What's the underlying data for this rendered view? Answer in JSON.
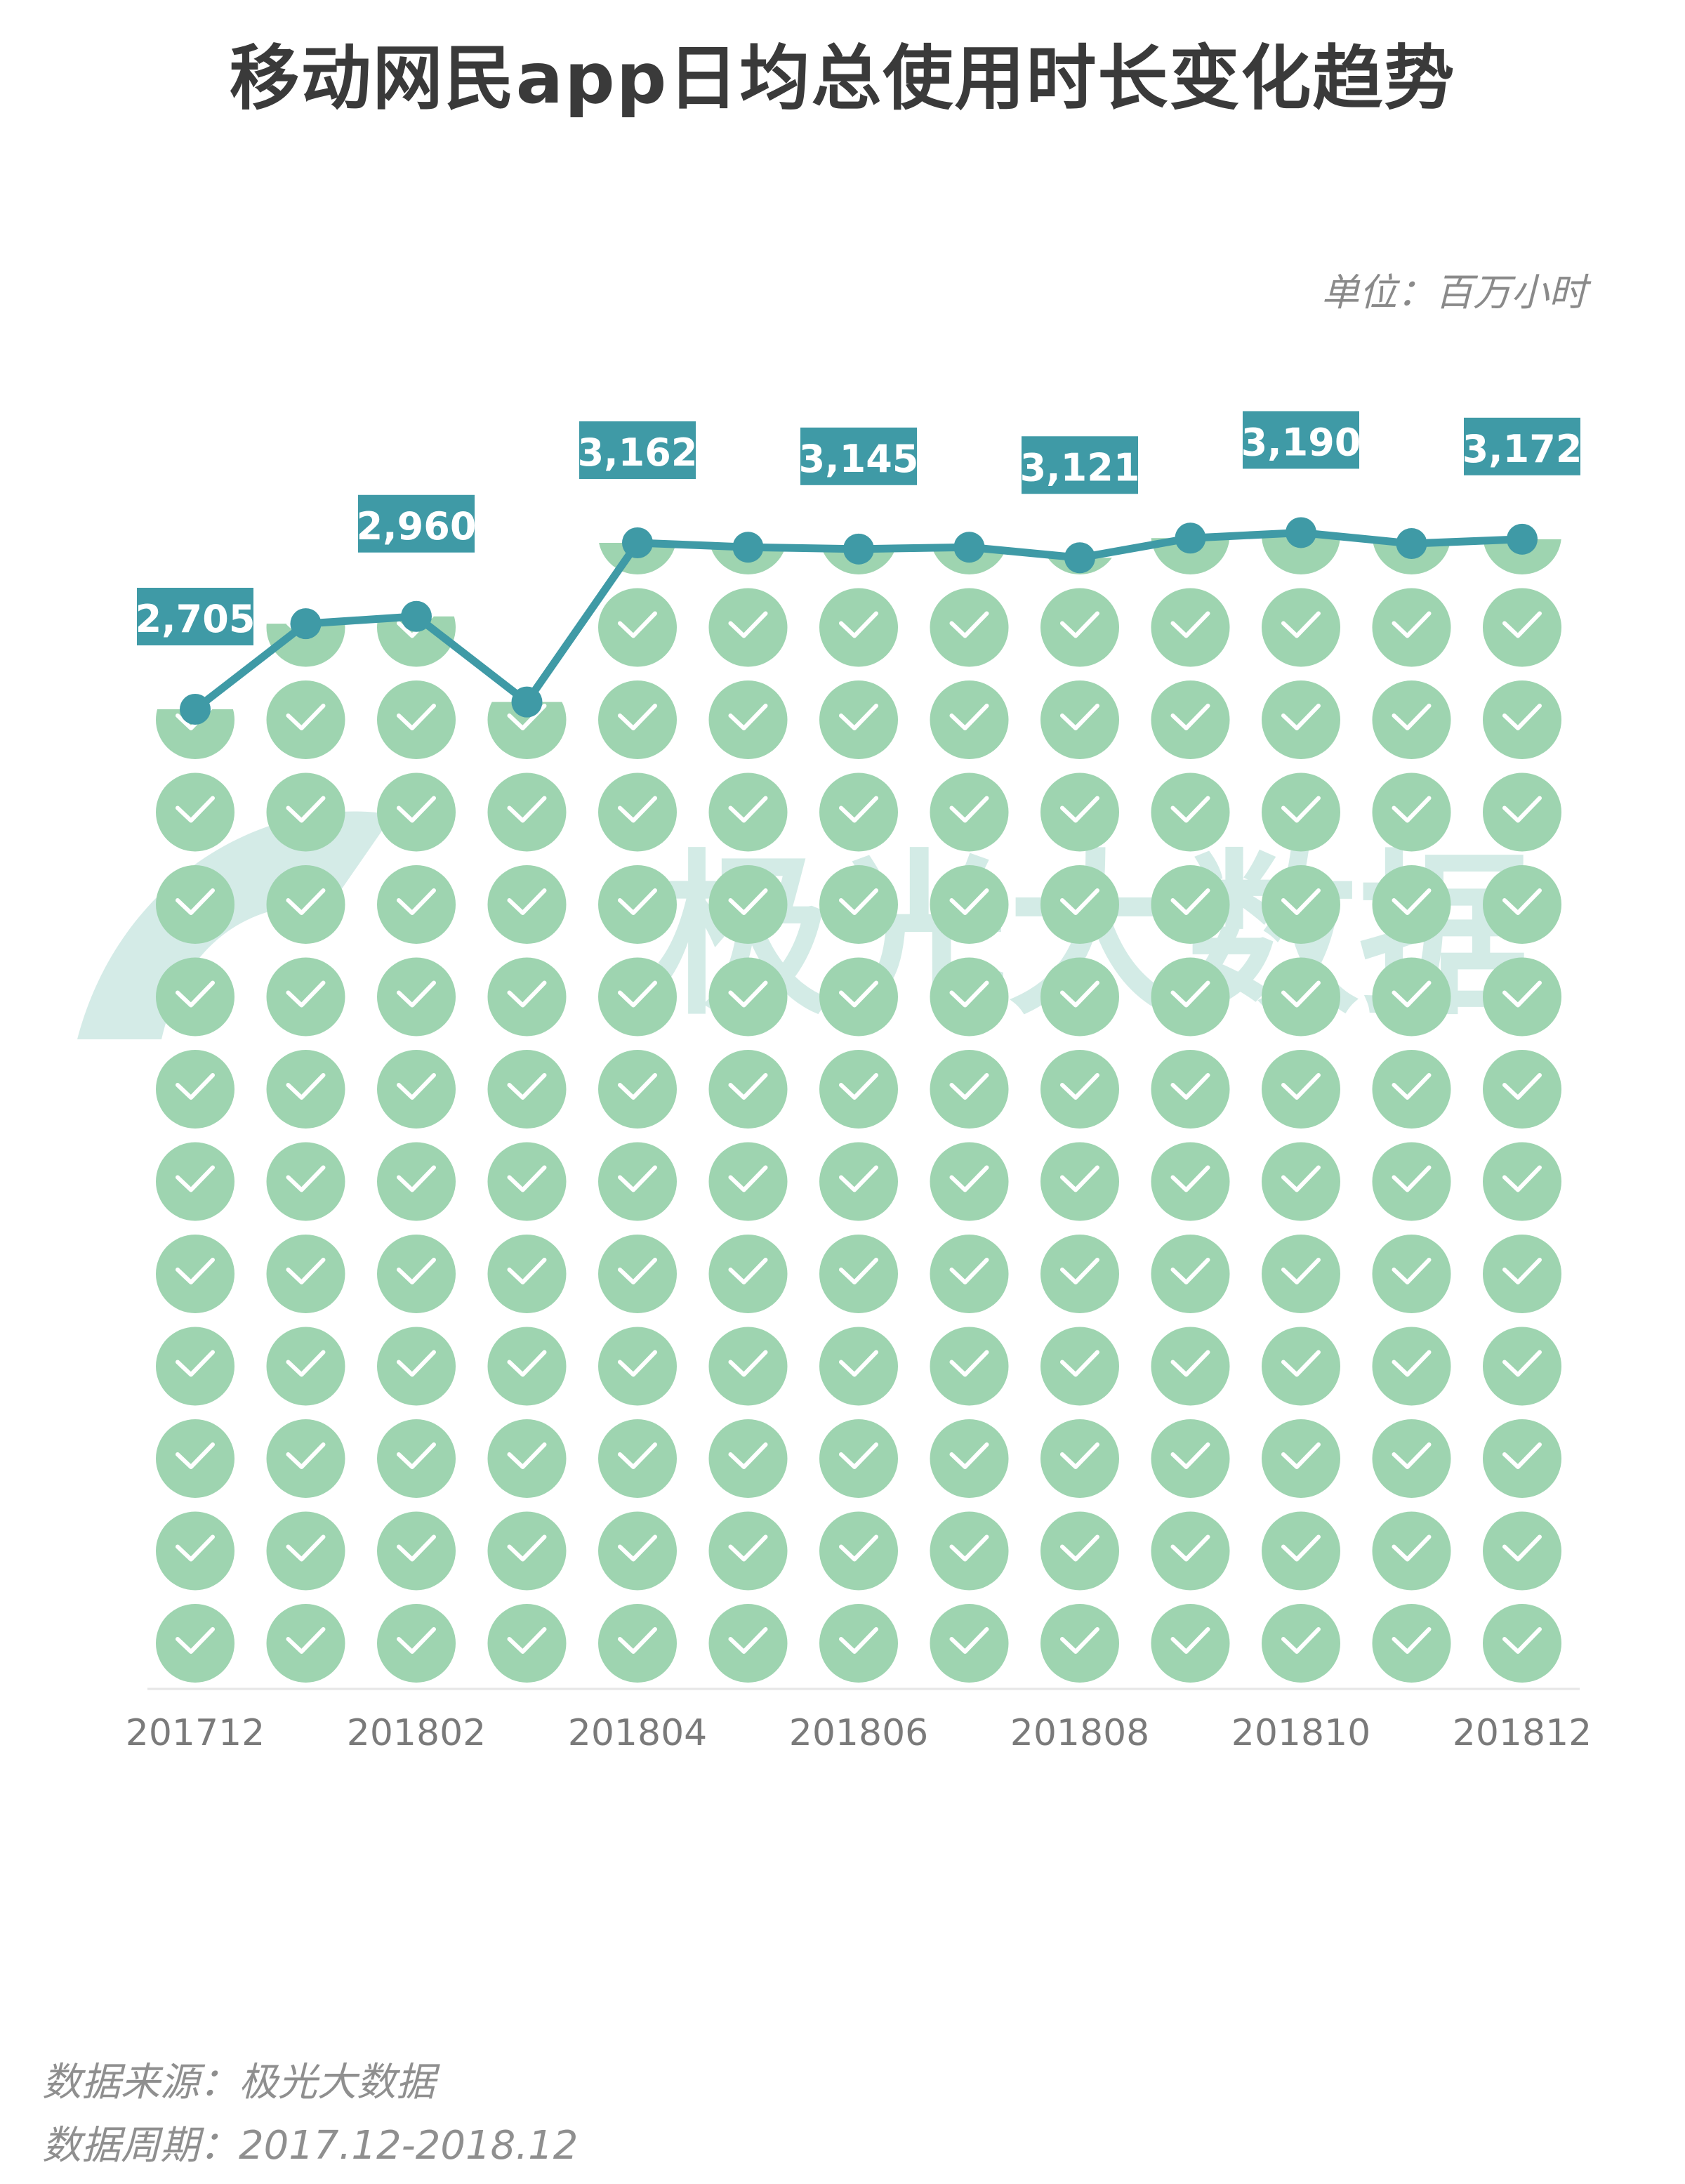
{
  "title": "移动网民app日均总使用时长变化趋势",
  "unit": "单位：百万小时",
  "watermark": "极光大数据",
  "footer": {
    "source": "数据来源：极光大数据",
    "period": "数据周期：2017.12-2018.12"
  },
  "colors": {
    "line": "#3f9aa6",
    "label_bg": "#3f9aa6",
    "circle": "#9ed4b0",
    "check": "#ffffff",
    "axis_text": "#7a7a7a",
    "watermark": "#cfe9e4"
  },
  "chart_data": {
    "type": "line",
    "x": [
      "201712",
      "201801",
      "201802",
      "201803",
      "201804",
      "201805",
      "201806",
      "201807",
      "201808",
      "201809",
      "201810",
      "201811",
      "201812"
    ],
    "xtick_labels": [
      "201712",
      "201802",
      "201804",
      "201806",
      "201808",
      "201810",
      "201812"
    ],
    "values": [
      2705,
      2940,
      2960,
      2725,
      3162,
      3150,
      3145,
      3150,
      3121,
      3175,
      3190,
      3160,
      3172
    ],
    "data_labels": {
      "0": "2,705",
      "2": "2,960",
      "4": "3,162",
      "6": "3,145",
      "8": "3,121",
      "10": "3,190",
      "12": "3,172"
    },
    "marker": "pictogram of check-mark circles filling area below the line",
    "ylim": [
      0,
      3300
    ],
    "grid": false,
    "legend": false
  }
}
